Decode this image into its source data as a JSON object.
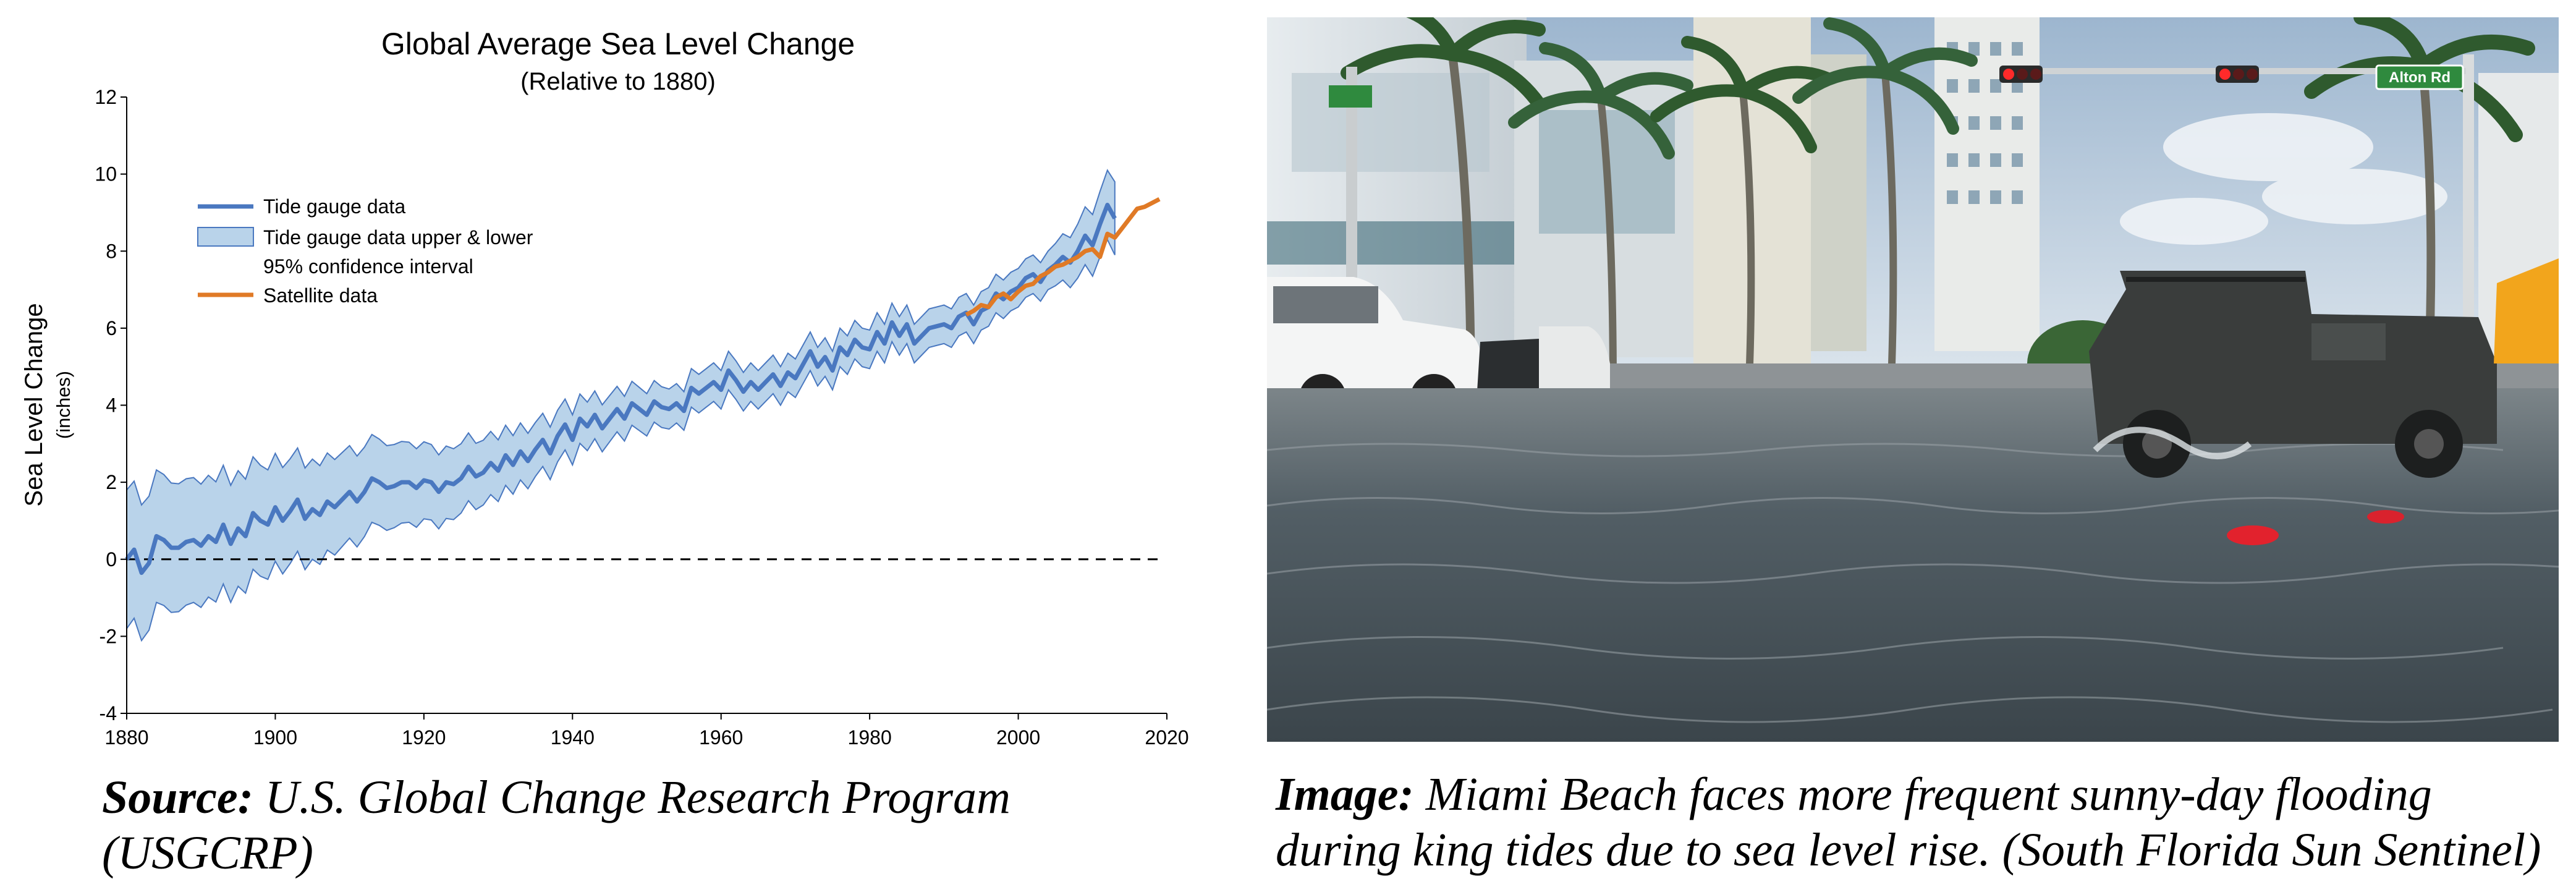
{
  "chart_data": {
    "type": "line",
    "title": "Global Average Sea Level Change",
    "subtitle": "(Relative to 1880)",
    "ylabel": "Sea Level Change",
    "ylabel_unit": "(inches)",
    "xlabel": "",
    "xlim": [
      1880,
      2020
    ],
    "ylim": [
      -4,
      12
    ],
    "x_ticks": [
      1880,
      1900,
      1920,
      1940,
      1960,
      1980,
      2000,
      2020
    ],
    "y_ticks": [
      -4,
      -2,
      0,
      2,
      4,
      6,
      8,
      10,
      12
    ],
    "grid": false,
    "legend_position": "top-left",
    "reference_line": {
      "y": 0,
      "style": "dashed"
    },
    "legend": [
      {
        "label": "Tide gauge data",
        "kind": "line",
        "color": "#4a78c0"
      },
      {
        "label_line1": "Tide gauge data upper & lower",
        "label_line2": "95% confidence interval",
        "kind": "band",
        "color": "#b9d3ea"
      },
      {
        "label": "Satellite data",
        "kind": "line",
        "color": "#e07a26"
      }
    ],
    "series": [
      {
        "name": "Tide gauge data",
        "color": "#4a78c0",
        "x": [
          1880,
          1881,
          1882,
          1883,
          1884,
          1885,
          1886,
          1887,
          1888,
          1889,
          1890,
          1891,
          1892,
          1893,
          1894,
          1895,
          1896,
          1897,
          1898,
          1899,
          1900,
          1901,
          1902,
          1903,
          1904,
          1905,
          1906,
          1907,
          1908,
          1909,
          1910,
          1911,
          1912,
          1913,
          1914,
          1915,
          1916,
          1917,
          1918,
          1919,
          1920,
          1921,
          1922,
          1923,
          1924,
          1925,
          1926,
          1927,
          1928,
          1929,
          1930,
          1931,
          1932,
          1933,
          1934,
          1935,
          1936,
          1937,
          1938,
          1939,
          1940,
          1941,
          1942,
          1943,
          1944,
          1945,
          1946,
          1947,
          1948,
          1949,
          1950,
          1951,
          1952,
          1953,
          1954,
          1955,
          1956,
          1957,
          1958,
          1959,
          1960,
          1961,
          1962,
          1963,
          1964,
          1965,
          1966,
          1967,
          1968,
          1969,
          1970,
          1971,
          1972,
          1973,
          1974,
          1975,
          1976,
          1977,
          1978,
          1979,
          1980,
          1981,
          1982,
          1983,
          1984,
          1985,
          1986,
          1987,
          1988,
          1989,
          1990,
          1991,
          1992,
          1993,
          1994,
          1995,
          1996,
          1997,
          1998,
          1999,
          2000,
          2001,
          2002,
          2003,
          2004,
          2005,
          2006,
          2007,
          2008,
          2009,
          2010,
          2011,
          2012,
          2013
        ],
        "y": [
          0.0,
          0.25,
          -0.35,
          -0.1,
          0.6,
          0.5,
          0.3,
          0.3,
          0.45,
          0.5,
          0.35,
          0.6,
          0.45,
          0.9,
          0.4,
          0.8,
          0.6,
          1.2,
          1.0,
          0.9,
          1.35,
          1.0,
          1.25,
          1.55,
          1.05,
          1.3,
          1.15,
          1.5,
          1.35,
          1.55,
          1.75,
          1.5,
          1.75,
          2.1,
          2.0,
          1.85,
          1.9,
          2.0,
          2.0,
          1.85,
          2.05,
          2.0,
          1.75,
          2.0,
          1.95,
          2.1,
          2.4,
          2.15,
          2.25,
          2.5,
          2.3,
          2.7,
          2.45,
          2.8,
          2.55,
          2.85,
          3.1,
          2.75,
          3.2,
          3.5,
          3.1,
          3.65,
          3.45,
          3.75,
          3.4,
          3.65,
          3.9,
          3.65,
          4.05,
          3.9,
          3.75,
          4.1,
          3.95,
          3.9,
          4.05,
          3.85,
          4.45,
          4.3,
          4.45,
          4.6,
          4.4,
          4.9,
          4.65,
          4.35,
          4.6,
          4.4,
          4.6,
          4.8,
          4.5,
          4.85,
          4.7,
          5.05,
          5.4,
          5.0,
          5.25,
          4.9,
          5.5,
          5.3,
          5.7,
          5.5,
          5.45,
          5.9,
          5.6,
          6.15,
          5.8,
          6.1,
          5.6,
          5.8,
          6.0,
          6.05,
          6.1,
          6.0,
          6.3,
          6.4,
          6.1,
          6.45,
          6.55,
          6.9,
          6.75,
          6.95,
          7.05,
          7.3,
          7.4,
          7.2,
          7.5,
          7.65,
          7.85,
          7.7,
          8.0,
          8.4,
          8.15,
          8.7,
          9.2,
          8.85
        ],
        "ci_halfwidth": [
          1.8,
          1.78,
          1.76,
          1.74,
          1.72,
          1.7,
          1.68,
          1.66,
          1.64,
          1.62,
          1.6,
          1.58,
          1.56,
          1.54,
          1.52,
          1.5,
          1.48,
          1.46,
          1.44,
          1.42,
          1.4,
          1.38,
          1.36,
          1.34,
          1.32,
          1.3,
          1.28,
          1.26,
          1.24,
          1.22,
          1.2,
          1.18,
          1.16,
          1.14,
          1.12,
          1.1,
          1.08,
          1.06,
          1.04,
          1.02,
          1.0,
          0.98,
          0.96,
          0.94,
          0.92,
          0.9,
          0.88,
          0.86,
          0.84,
          0.82,
          0.8,
          0.78,
          0.76,
          0.74,
          0.72,
          0.7,
          0.69,
          0.68,
          0.67,
          0.66,
          0.65,
          0.64,
          0.63,
          0.62,
          0.61,
          0.6,
          0.59,
          0.58,
          0.57,
          0.56,
          0.55,
          0.54,
          0.53,
          0.52,
          0.51,
          0.5,
          0.5,
          0.5,
          0.5,
          0.5,
          0.5,
          0.5,
          0.5,
          0.5,
          0.5,
          0.5,
          0.5,
          0.5,
          0.5,
          0.5,
          0.5,
          0.5,
          0.5,
          0.5,
          0.5,
          0.5,
          0.5,
          0.5,
          0.5,
          0.5,
          0.5,
          0.5,
          0.5,
          0.5,
          0.5,
          0.5,
          0.5,
          0.5,
          0.5,
          0.5,
          0.5,
          0.5,
          0.5,
          0.5,
          0.5,
          0.5,
          0.5,
          0.5,
          0.5,
          0.5,
          0.5,
          0.5,
          0.5,
          0.5,
          0.5,
          0.55,
          0.6,
          0.65,
          0.7,
          0.75,
          0.8,
          0.85,
          0.9,
          0.95
        ]
      },
      {
        "name": "Satellite data",
        "color": "#e07a26",
        "x": [
          1993,
          1994,
          1995,
          1996,
          1997,
          1998,
          1999,
          2000,
          2001,
          2002,
          2003,
          2004,
          2005,
          2006,
          2007,
          2008,
          2009,
          2010,
          2011,
          2012,
          2013,
          2014,
          2015,
          2016,
          2017,
          2018,
          2019
        ],
        "y": [
          6.35,
          6.45,
          6.6,
          6.55,
          6.8,
          6.9,
          6.75,
          6.95,
          7.1,
          7.15,
          7.35,
          7.45,
          7.6,
          7.65,
          7.75,
          7.85,
          8.0,
          8.05,
          7.85,
          8.45,
          8.35,
          8.6,
          8.85,
          9.1,
          9.15,
          9.25,
          9.35
        ]
      }
    ]
  },
  "captions": {
    "source_label": "Source:",
    "source_text": " U.S. Global Change Research Program (USGCRP)",
    "image_label": "Image:",
    "image_text": " Miami Beach faces more frequent sunny-day flooding during king tides due to sea level rise. (South Florida Sun Sentinel)"
  },
  "photo": {
    "street_sign": "Alton Rd",
    "colors": {
      "sky": "#b9cde0",
      "water": "#4f5c63",
      "road": "#6b7377",
      "jeep": "#3a3d3c",
      "taxi": "#f2a51c"
    }
  }
}
